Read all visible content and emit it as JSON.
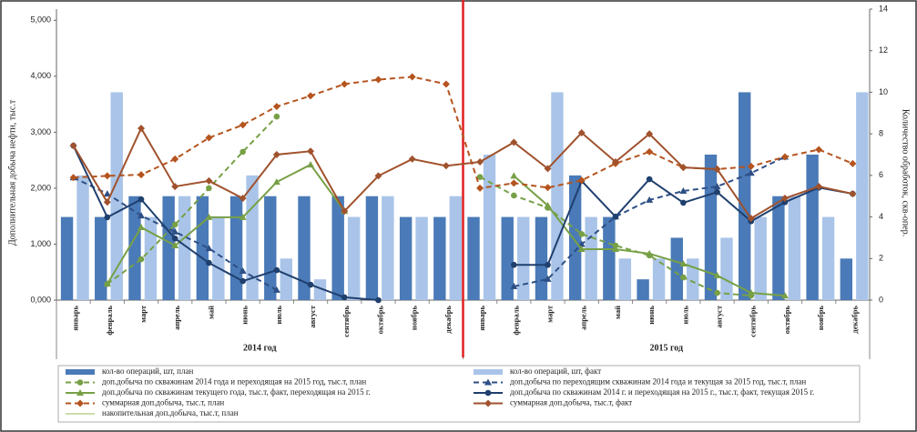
{
  "chart_data": {
    "type": "combo",
    "y_label": "Дополнительная добыча нефти, тыс.т",
    "y2_label": "Количество обработок, скв-опер.",
    "years": [
      "2014 год",
      "2015 год"
    ],
    "categories": [
      "январь",
      "февраль",
      "март",
      "апрель",
      "май",
      "июнь",
      "июль",
      "август",
      "сентябрь",
      "октябрь",
      "ноябрь",
      "декабрь",
      "январь",
      "февраль",
      "март",
      "апрель",
      "май",
      "июнь",
      "июль",
      "август",
      "сентябрь",
      "октябрь",
      "ноябрь",
      "декабрь"
    ],
    "ylim": [
      0,
      5200
    ],
    "yticks": [
      {
        "value": 0,
        "label": "0,000"
      },
      {
        "value": 1000,
        "label": "1,000"
      },
      {
        "value": 2000,
        "label": "2,000"
      },
      {
        "value": 3000,
        "label": "3,000"
      },
      {
        "value": 4000,
        "label": "4,000"
      },
      {
        "value": 5000,
        "label": "5,000"
      }
    ],
    "y2lim": [
      0,
      14
    ],
    "y2ticks": [
      0,
      2,
      4,
      6,
      8,
      10,
      12,
      14
    ],
    "series": [
      {
        "name": "кол-во операций, шт, план",
        "type": "bar",
        "axis": "y2",
        "color": "#4a7ab7",
        "slot": 0,
        "values": [
          4,
          4,
          5,
          5,
          5,
          5,
          5,
          5,
          5,
          5,
          4,
          4,
          4,
          4,
          4,
          6,
          4,
          1,
          3,
          7,
          10,
          5,
          7,
          2
        ]
      },
      {
        "name": "кол-во операций, шт, факт",
        "type": "bar",
        "axis": "y2",
        "color": "#a9c4e8",
        "slot": 1,
        "values": [
          6,
          10,
          4,
          5,
          4,
          6,
          2,
          1,
          4,
          5,
          4,
          5,
          7,
          4,
          10,
          4,
          2,
          2,
          2,
          3,
          4,
          5,
          4,
          10
        ]
      },
      {
        "name": "доп.добыча по скважинам 2014 года и переходящая на 2015 год, тыс.т, план",
        "type": "line",
        "color": "#77a046",
        "dash": true,
        "marker": "circle",
        "values": [
          null,
          290,
          730,
          1350,
          2000,
          2650,
          3280,
          null,
          null,
          null,
          null,
          null,
          2200,
          1870,
          1650,
          1180,
          975,
          800,
          405,
          130,
          80,
          null,
          null,
          null
        ]
      },
      {
        "name": "доп.добыча по переходящим скважинам 2014 года и текущая за 2015 год, тыс.т, план",
        "type": "line",
        "color": "#2e4f86",
        "dash": true,
        "marker": "triangle",
        "values": [
          2190,
          1900,
          1510,
          1220,
          925,
          520,
          180,
          null,
          null,
          null,
          null,
          null,
          null,
          245,
          375,
          1000,
          1490,
          1790,
          1950,
          2030,
          2270,
          2560,
          null,
          null
        ]
      },
      {
        "name": "доп.добыча по скважинам текущего года, тыс.т, факт, переходящая на 2015 г.",
        "type": "line",
        "color": "#77a046",
        "dash": false,
        "marker": "triangle",
        "values": [
          null,
          290,
          1300,
          975,
          1480,
          1480,
          2110,
          2420,
          1590,
          null,
          null,
          null,
          null,
          2220,
          1690,
          910,
          910,
          830,
          650,
          440,
          130,
          80,
          null,
          null
        ]
      },
      {
        "name": "доп.добыча по скважинам 2014 г. и переходящая на 2015 г., тыс.т, факт, текущая 2015 г.",
        "type": "line",
        "color": "#1f3f6e",
        "dash": false,
        "marker": "circle",
        "values": [
          2760,
          1480,
          1800,
          1100,
          665,
          340,
          535,
          275,
          50,
          0,
          null,
          null,
          null,
          630,
          630,
          2130,
          1490,
          2160,
          1740,
          1930,
          1410,
          1750,
          2010,
          1900
        ]
      },
      {
        "name": "суммарная доп.добыча, тыс.т, план",
        "type": "line",
        "color": "#b5541f",
        "dash": true,
        "marker": "diamond",
        "values": [
          2190,
          2220,
          2240,
          2520,
          2900,
          3130,
          3460,
          3650,
          3860,
          3940,
          3990,
          3860,
          2000,
          2090,
          2010,
          2140,
          2440,
          2650,
          2370,
          2340,
          2390,
          2560,
          2690,
          2440
        ]
      },
      {
        "name": "суммарная доп.добыча, тыс.т, факт",
        "type": "line",
        "color": "#a0522d",
        "dash": false,
        "marker": "diamond",
        "values": [
          2760,
          1750,
          3070,
          2030,
          2130,
          1820,
          2600,
          2660,
          1590,
          2220,
          2520,
          2400,
          2470,
          2820,
          2350,
          2990,
          2470,
          2970,
          2370,
          2340,
          1460,
          1820,
          2030,
          1900
        ]
      },
      {
        "name": "накопительная доп.добыча, тыс.т, план",
        "type": "line",
        "color": "#9bbb59",
        "dash": false,
        "marker": "none",
        "values": [
          null,
          null,
          null,
          null,
          null,
          null,
          null,
          null,
          null,
          null,
          null,
          null,
          null,
          null,
          null,
          null,
          null,
          null,
          null,
          null,
          null,
          null,
          null,
          null
        ]
      }
    ]
  }
}
